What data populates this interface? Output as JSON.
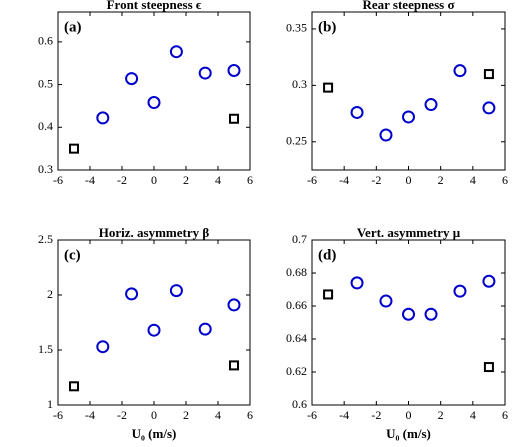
{
  "chart_data": [
    {
      "type": "scatter",
      "title": "Front steepness ϵ",
      "label": "(a)",
      "xlim": [
        -6,
        6
      ],
      "xticks": [
        -6,
        -4,
        -2,
        0,
        2,
        4,
        6
      ],
      "ylim": [
        0.3,
        0.67
      ],
      "yticks": [
        0.3,
        0.4,
        0.5,
        0.6
      ],
      "series": [
        {
          "marker": "circle",
          "color": "#0000cc",
          "x": [
            -3.2,
            -1.4,
            0,
            1.4,
            3.2,
            5
          ],
          "values": [
            0.422,
            0.514,
            0.458,
            0.577,
            0.527,
            0.533
          ]
        },
        {
          "marker": "square",
          "color": "#000000",
          "x": [
            -5,
            5
          ],
          "values": [
            0.35,
            0.42
          ]
        }
      ]
    },
    {
      "type": "scatter",
      "title": "Rear steepness σ",
      "label": "(b)",
      "xlim": [
        -6,
        6
      ],
      "xticks": [
        -6,
        -4,
        -2,
        0,
        2,
        4,
        6
      ],
      "ylim": [
        0.225,
        0.365
      ],
      "yticks": [
        0.25,
        0.3,
        0.35
      ],
      "series": [
        {
          "marker": "circle",
          "color": "#0000cc",
          "x": [
            -3.2,
            -1.4,
            0,
            1.4,
            3.2,
            5
          ],
          "values": [
            0.276,
            0.256,
            0.272,
            0.283,
            0.313,
            0.28
          ]
        },
        {
          "marker": "square",
          "color": "#000000",
          "x": [
            -5,
            5
          ],
          "values": [
            0.298,
            0.31
          ]
        }
      ]
    },
    {
      "type": "scatter",
      "title": "Horiz. asymmetry β",
      "label": "(c)",
      "xlabel": "U₀ (m/s)",
      "xlim": [
        -6,
        6
      ],
      "xticks": [
        -6,
        -4,
        -2,
        0,
        2,
        4,
        6
      ],
      "ylim": [
        1,
        2.5
      ],
      "yticks": [
        1,
        1.5,
        2,
        2.5
      ],
      "series": [
        {
          "marker": "circle",
          "color": "#0000cc",
          "x": [
            -3.2,
            -1.4,
            0,
            1.4,
            3.2,
            5
          ],
          "values": [
            1.53,
            2.01,
            1.68,
            2.04,
            1.69,
            1.91
          ]
        },
        {
          "marker": "square",
          "color": "#000000",
          "x": [
            -5,
            5
          ],
          "values": [
            1.17,
            1.36
          ]
        }
      ]
    },
    {
      "type": "scatter",
      "title": "Vert. asymmetry μ",
      "label": "(d)",
      "xlabel": "U₀ (m/s)",
      "xlim": [
        -6,
        6
      ],
      "xticks": [
        -6,
        -4,
        -2,
        0,
        2,
        4,
        6
      ],
      "ylim": [
        0.6,
        0.7
      ],
      "yticks": [
        0.6,
        0.62,
        0.64,
        0.66,
        0.68,
        0.7
      ],
      "series": [
        {
          "marker": "circle",
          "color": "#0000cc",
          "x": [
            -3.2,
            -1.4,
            0,
            1.4,
            3.2,
            5
          ],
          "values": [
            0.674,
            0.663,
            0.655,
            0.655,
            0.669,
            0.675
          ]
        },
        {
          "marker": "square",
          "color": "#000000",
          "x": [
            -5,
            5
          ],
          "values": [
            0.667,
            0.623
          ]
        }
      ]
    }
  ]
}
